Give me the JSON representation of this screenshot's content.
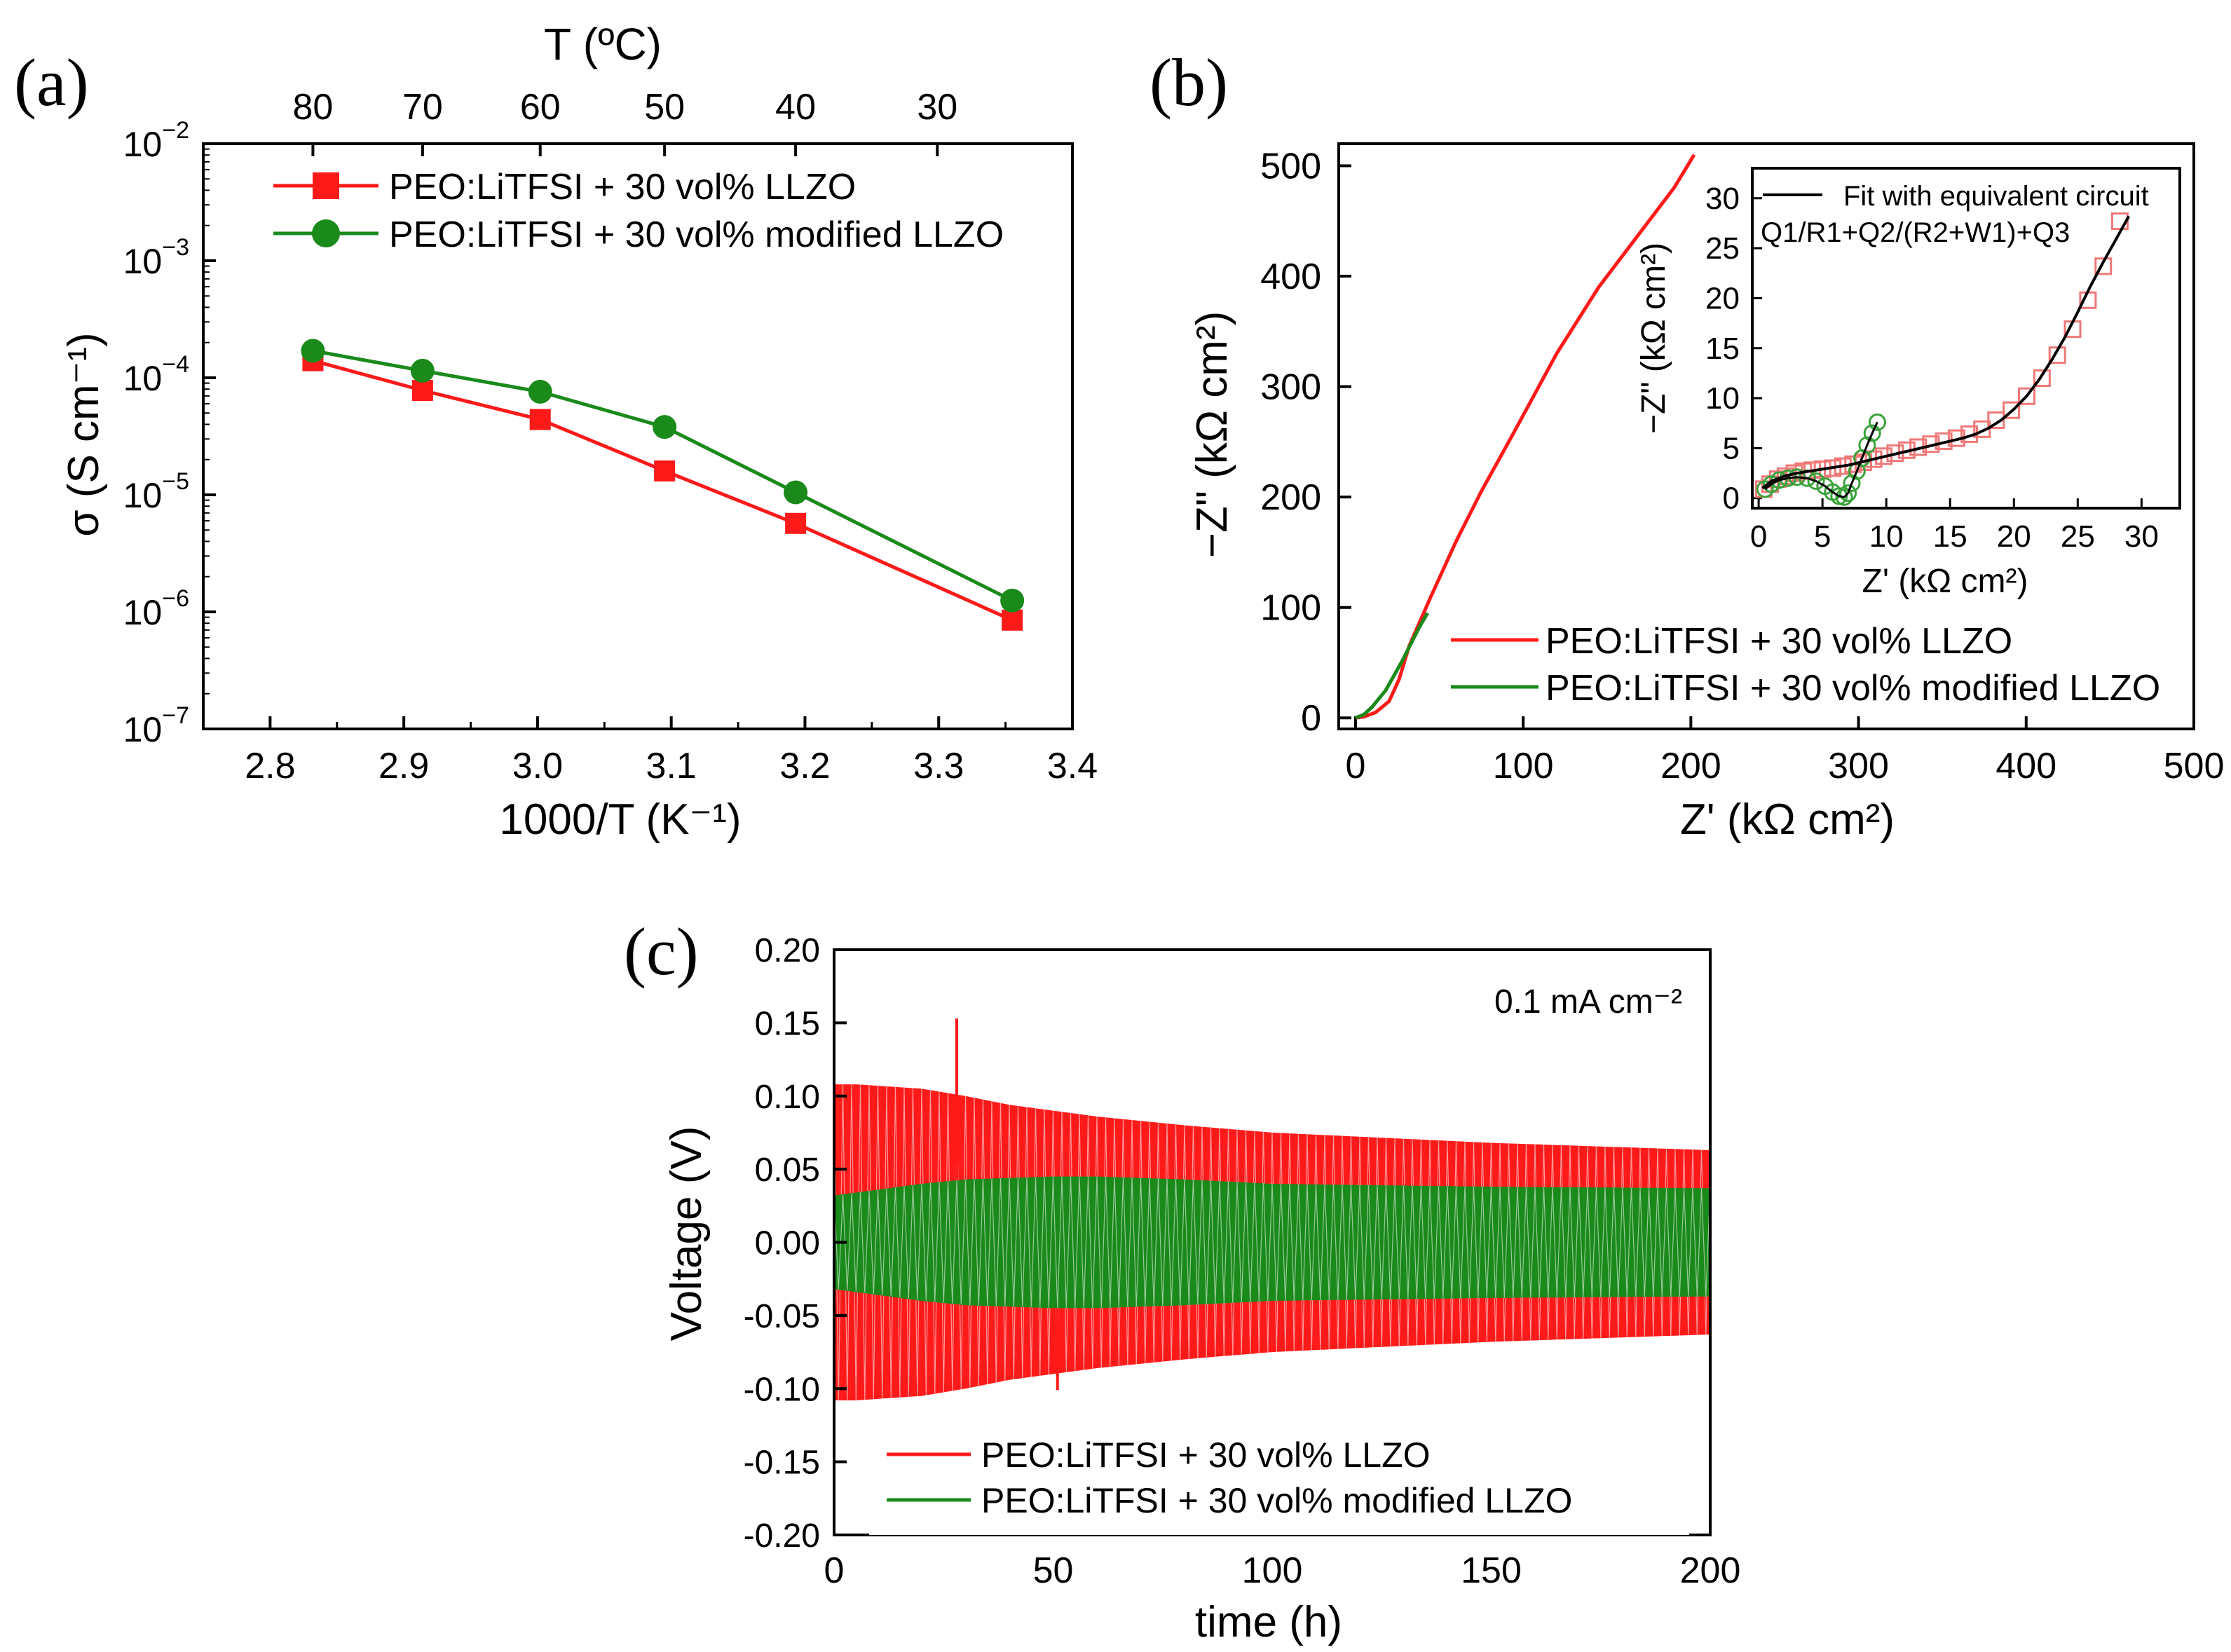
{
  "colors": {
    "red": "#ff1a1a",
    "green": "#1a8a1a",
    "fit": "#000000",
    "redOpen": "#f07878",
    "greenOpen": "#3aa23a"
  },
  "series_names": {
    "llzo": "PEO:LiTFSI + 30 vol% LLZO",
    "mod": "PEO:LiTFSI + 30 vol% modified LLZO"
  },
  "chart_data": [
    {
      "id": "a",
      "type": "line",
      "panel_label": "(a)",
      "xlabel": "1000/T (K⁻¹)",
      "top_axis_label": "T (ºC)",
      "ylabel": "σ (S cm⁻¹)",
      "xlim": [
        2.75,
        3.4
      ],
      "ylim": [
        1e-07,
        0.01
      ],
      "yscale": "log",
      "xticks": [
        "2.8",
        "2.9",
        "3.0",
        "3.1",
        "3.2",
        "3.3",
        "3.4"
      ],
      "yticks": [
        {
          "value": 0.01,
          "mantissa": "10",
          "exp": "−2"
        },
        {
          "value": 0.001,
          "mantissa": "10",
          "exp": "−3"
        },
        {
          "value": 0.0001,
          "mantissa": "10",
          "exp": "−4"
        },
        {
          "value": 1e-05,
          "mantissa": "10",
          "exp": "−5"
        },
        {
          "value": 1e-06,
          "mantissa": "10",
          "exp": "−6"
        },
        {
          "value": 1e-07,
          "mantissa": "10",
          "exp": "−7"
        }
      ],
      "top_ticks": [
        {
          "label": "80",
          "x": 2.832
        },
        {
          "label": "70",
          "x": 2.914
        },
        {
          "label": "60",
          "x": 3.002
        },
        {
          "label": "50",
          "x": 3.095
        },
        {
          "label": "40",
          "x": 3.193
        },
        {
          "label": "30",
          "x": 3.299
        }
      ],
      "legend": "top-left",
      "series": [
        {
          "key": "llzo",
          "marker": "square",
          "color": "red",
          "x": [
            2.832,
            2.914,
            3.002,
            3.095,
            3.193,
            3.355
          ],
          "y": [
            0.00014,
            7.8e-05,
            4.4e-05,
            1.6e-05,
            5.7e-06,
            8.5e-07
          ]
        },
        {
          "key": "mod",
          "marker": "circle",
          "color": "green",
          "x": [
            2.832,
            2.914,
            3.002,
            3.095,
            3.193,
            3.355
          ],
          "y": [
            0.00017,
            0.000115,
            7.6e-05,
            3.8e-05,
            1.05e-05,
            1.25e-06
          ]
        }
      ]
    },
    {
      "id": "b",
      "type": "line",
      "panel_label": "(b)",
      "xlabel": "Z' (kΩ cm²)",
      "ylabel": "−Z\" (kΩ cm²)",
      "xlim": [
        -10,
        500
      ],
      "ylim": [
        -10,
        520
      ],
      "xticks": [
        0,
        100,
        200,
        300,
        400,
        500
      ],
      "yticks": [
        0,
        100,
        200,
        300,
        400,
        500
      ],
      "legend": "bottom-right",
      "series": [
        {
          "key": "llzo",
          "color": "red",
          "x": [
            0,
            5,
            12,
            20,
            26,
            32,
            45,
            60,
            75,
            95,
            120,
            145,
            170,
            190,
            202
          ],
          "y": [
            0,
            1,
            5,
            15,
            35,
            65,
            110,
            160,
            205,
            260,
            330,
            390,
            440,
            480,
            510
          ]
        },
        {
          "key": "mod",
          "color": "green",
          "x": [
            0,
            5,
            10,
            18,
            28,
            38,
            43
          ],
          "y": [
            0,
            3,
            10,
            25,
            52,
            82,
            95
          ]
        }
      ],
      "inset": {
        "xlabel": "Z' (kΩ cm²)",
        "ylabel": "−Z\" (kΩ cm²)",
        "xlim": [
          -0.5,
          33
        ],
        "ylim": [
          -1,
          33
        ],
        "xticks": [
          0,
          5,
          10,
          15,
          20,
          25,
          30
        ],
        "yticks": [
          0,
          5,
          10,
          15,
          20,
          25,
          30
        ],
        "legend_fit": "Fit with equivalent circuit",
        "circuit": "Q1/R1+Q2/(R2+W1)+Q3",
        "fit": {
          "x": [
            0.3,
            1,
            2,
            3,
            4,
            5,
            6,
            7,
            8,
            9,
            10,
            11,
            12,
            13,
            14,
            15,
            16,
            17,
            18,
            19,
            20,
            21,
            22,
            23,
            24,
            25,
            26,
            27,
            28,
            29
          ],
          "y": [
            1.0,
            1.7,
            2.2,
            2.5,
            2.7,
            2.9,
            3.1,
            3.3,
            3.6,
            3.9,
            4.2,
            4.5,
            4.8,
            5.1,
            5.4,
            5.7,
            6.0,
            6.4,
            7.0,
            7.8,
            8.9,
            10.2,
            11.9,
            13.9,
            16.1,
            18.6,
            21.2,
            23.6,
            25.9,
            28.2
          ]
        },
        "red_points": {
          "x": [
            0.4,
            0.9,
            1.5,
            2.1,
            2.8,
            3.5,
            4.2,
            5.0,
            5.8,
            6.6,
            7.4,
            8.2,
            9.0,
            9.8,
            10.7,
            11.6,
            12.5,
            13.5,
            14.5,
            15.5,
            16.5,
            17.5,
            18.6,
            19.8,
            21.0,
            22.2,
            23.4,
            24.6,
            25.8,
            27.0,
            28.3
          ],
          "y": [
            0.9,
            1.4,
            1.9,
            2.2,
            2.5,
            2.7,
            2.8,
            2.9,
            3.0,
            3.2,
            3.4,
            3.6,
            3.9,
            4.2,
            4.5,
            4.8,
            5.1,
            5.4,
            5.7,
            6.0,
            6.4,
            6.9,
            7.8,
            8.8,
            10.2,
            12.0,
            14.3,
            16.9,
            19.8,
            23.2,
            27.7
          ]
        },
        "green_points": {
          "x": [
            0.5,
            1.0,
            1.6,
            2.3,
            3.0,
            3.8,
            4.5,
            5.2,
            5.8,
            6.3,
            6.7,
            7.0,
            7.3,
            7.7,
            8.1,
            8.5,
            8.9,
            9.3
          ],
          "y": [
            0.9,
            1.4,
            1.8,
            2.0,
            2.1,
            2.0,
            1.7,
            1.2,
            0.6,
            0.2,
            0.1,
            0.5,
            1.5,
            2.7,
            4.0,
            5.3,
            6.5,
            7.6
          ]
        }
      }
    },
    {
      "id": "c",
      "type": "line",
      "panel_label": "(c)",
      "xlabel": "time (h)",
      "ylabel": "Voltage (V)",
      "annotation": "0.1 mA cm⁻²",
      "xlim": [
        0,
        200
      ],
      "ylim": [
        -0.2,
        0.2
      ],
      "xticks": [
        0,
        50,
        100,
        150,
        200
      ],
      "yticks": [
        "0.20",
        "0.15",
        "0.10",
        "0.05",
        "0.00",
        "-0.05",
        "-0.10",
        "-0.15",
        "-0.20"
      ],
      "legend": "bottom-left",
      "cycle_period_h": 2,
      "series": [
        {
          "key": "llzo",
          "color": "red",
          "envelope_t": [
            0,
            5,
            20,
            30,
            40,
            60,
            80,
            100,
            150,
            200
          ],
          "envelope_amp": [
            0.108,
            0.108,
            0.105,
            0.1,
            0.094,
            0.086,
            0.08,
            0.075,
            0.068,
            0.063
          ],
          "spikes": [
            {
              "t": 28,
              "v": 0.153
            },
            {
              "t": 51,
              "v": -0.101
            }
          ]
        },
        {
          "key": "mod",
          "color": "green",
          "envelope_t": [
            0,
            10,
            20,
            30,
            40,
            50,
            60,
            80,
            100,
            150,
            200
          ],
          "envelope_amp": [
            0.032,
            0.036,
            0.04,
            0.043,
            0.044,
            0.045,
            0.045,
            0.043,
            0.04,
            0.038,
            0.037
          ]
        }
      ]
    }
  ]
}
